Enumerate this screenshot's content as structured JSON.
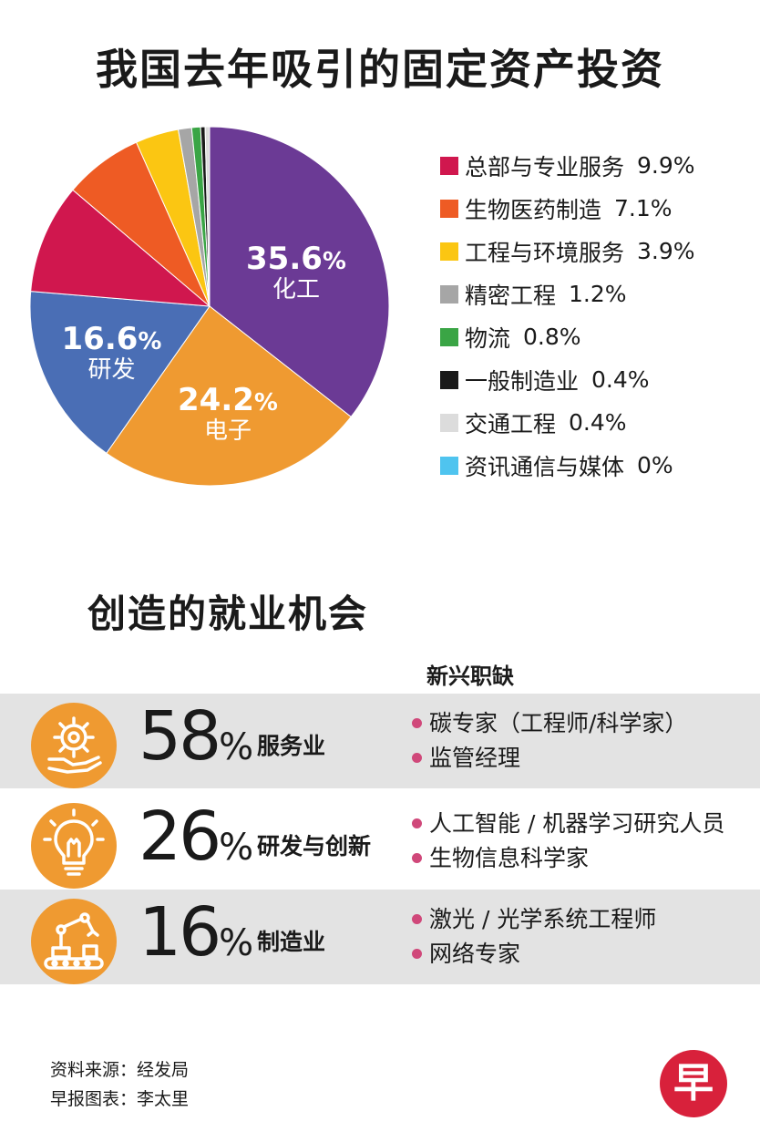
{
  "title": "我国去年吸引的固定资产投资",
  "chart_data": {
    "type": "pie",
    "title": "我国去年吸引的固定资产投资",
    "slices": [
      {
        "name": "化工",
        "value": 35.6,
        "label": "35.6",
        "color": "#6b3a95"
      },
      {
        "name": "电子",
        "value": 24.2,
        "label": "24.2",
        "color": "#ef9a31"
      },
      {
        "name": "研发",
        "value": 16.6,
        "label": "16.6",
        "color": "#4a6eb5"
      },
      {
        "name": "总部与专业服务",
        "value": 9.9,
        "label": "9.9%",
        "color": "#d0174e"
      },
      {
        "name": "生物医药制造",
        "value": 7.1,
        "label": "7.1%",
        "color": "#ee5b24"
      },
      {
        "name": "工程与环境服务",
        "value": 3.9,
        "label": "3.9%",
        "color": "#fbc612"
      },
      {
        "name": "精密工程",
        "value": 1.2,
        "label": "1.2%",
        "color": "#a6a6a6"
      },
      {
        "name": "物流",
        "value": 0.8,
        "label": "0.8%",
        "color": "#3aa545"
      },
      {
        "name": "一般制造业",
        "value": 0.4,
        "label": "0.4%",
        "color": "#1a1a1a"
      },
      {
        "name": "交通工程",
        "value": 0.4,
        "label": "0.4%",
        "color": "#dcdcdc"
      },
      {
        "name": "资讯通信与媒体",
        "value": 0,
        "label": "0%",
        "color": "#4fc4ef"
      }
    ],
    "percent_symbol": "%"
  },
  "jobs": {
    "title": "创造的就业机会",
    "header": "新兴职缺",
    "percent_symbol": "%",
    "rows": [
      {
        "pct": "58",
        "sector": "服务业",
        "icon": "gear-hand-icon",
        "roles": [
          "碳专家（工程师/科学家）",
          "监管经理"
        ]
      },
      {
        "pct": "26",
        "sector": "研发与创新",
        "icon": "lightbulb-icon",
        "roles": [
          "人工智能 / 机器学习研究人员",
          "生物信息科学家"
        ]
      },
      {
        "pct": "16",
        "sector": "制造业",
        "icon": "robot-arm-icon",
        "roles": [
          "激光 / 光学系统工程师",
          "网络专家"
        ]
      }
    ]
  },
  "footer": {
    "source": "资料来源：经发局",
    "credit": "早报图表：李太里"
  },
  "logo": {
    "char": "早",
    "color": "#d8213b"
  }
}
